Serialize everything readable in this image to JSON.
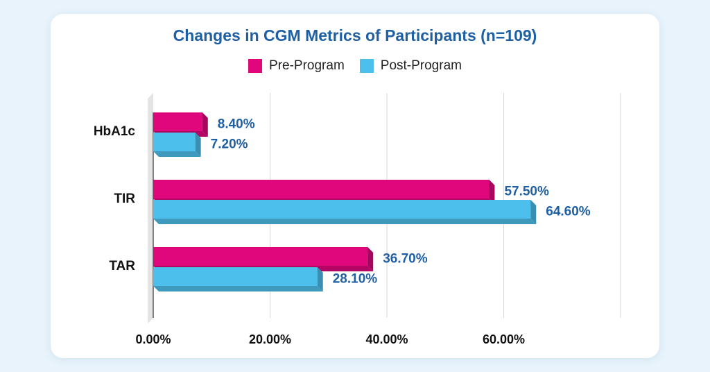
{
  "chart_data": {
    "type": "bar",
    "orientation": "horizontal",
    "title": "Changes in CGM Metrics of Participants (n=109)",
    "categories": [
      "HbA1c",
      "TIR",
      "TAR"
    ],
    "series": [
      {
        "name": "Pre-Program",
        "color": "#e0077d",
        "values": [
          8.4,
          57.5,
          36.7
        ],
        "labels": [
          "8.40%",
          "57.50%",
          "36.70%"
        ]
      },
      {
        "name": "Post-Program",
        "color": "#4dbfec",
        "values": [
          7.2,
          64.6,
          28.1
        ],
        "labels": [
          "7.20%",
          "64.60%",
          "28.10%"
        ]
      }
    ],
    "x_ticks": [
      0,
      20,
      40,
      60,
      80
    ],
    "x_tick_labels": [
      "0.00%",
      "20.00%",
      "40.00%",
      "60.00%",
      ""
    ],
    "xlim": [
      0,
      80
    ],
    "grid": true,
    "legend_position": "top-center"
  }
}
